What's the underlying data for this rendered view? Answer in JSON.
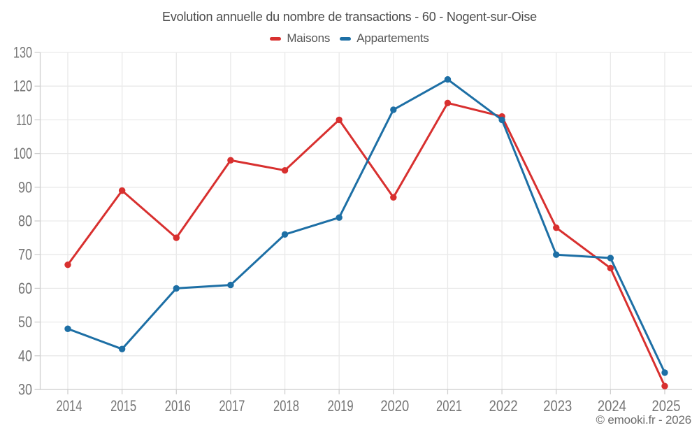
{
  "header": {
    "title": "Evolution annuelle du nombre de transactions - 60 - Nogent-sur-Oise"
  },
  "footer": {
    "watermark": "© emooki.fr - 2026"
  },
  "chart_data": {
    "type": "line",
    "title": "Evolution annuelle du nombre de transactions - 60 - Nogent-sur-Oise",
    "categories": [
      "2014",
      "2015",
      "2016",
      "2017",
      "2018",
      "2019",
      "2020",
      "2021",
      "2022",
      "2023",
      "2024",
      "2025"
    ],
    "series": [
      {
        "name": "Maisons",
        "color": "#d8302f",
        "values": [
          67,
          89,
          75,
          98,
          95,
          110,
          87,
          115,
          111,
          78,
          66,
          31
        ]
      },
      {
        "name": "Appartements",
        "color": "#1d6fa5",
        "values": [
          48,
          42,
          60,
          61,
          76,
          81,
          113,
          122,
          110,
          70,
          69,
          35
        ]
      }
    ],
    "xlabel": "",
    "ylabel": "",
    "ylim": [
      30,
      130
    ],
    "ytick_step": 10,
    "yticks": [
      "30",
      "40",
      "50",
      "60",
      "70",
      "80",
      "90",
      "100",
      "110",
      "120",
      "130"
    ],
    "grid": true,
    "legend_position": "top",
    "marker": "circle"
  },
  "theme": {
    "background": "#ffffff",
    "grid_color": "#e9e9e9",
    "axis_color": "#cfcfcf",
    "tick_label_color": "#757575",
    "title_color": "#4c4c4c",
    "legend_text_color": "#565656",
    "watermark_color": "#6e6e6e"
  }
}
